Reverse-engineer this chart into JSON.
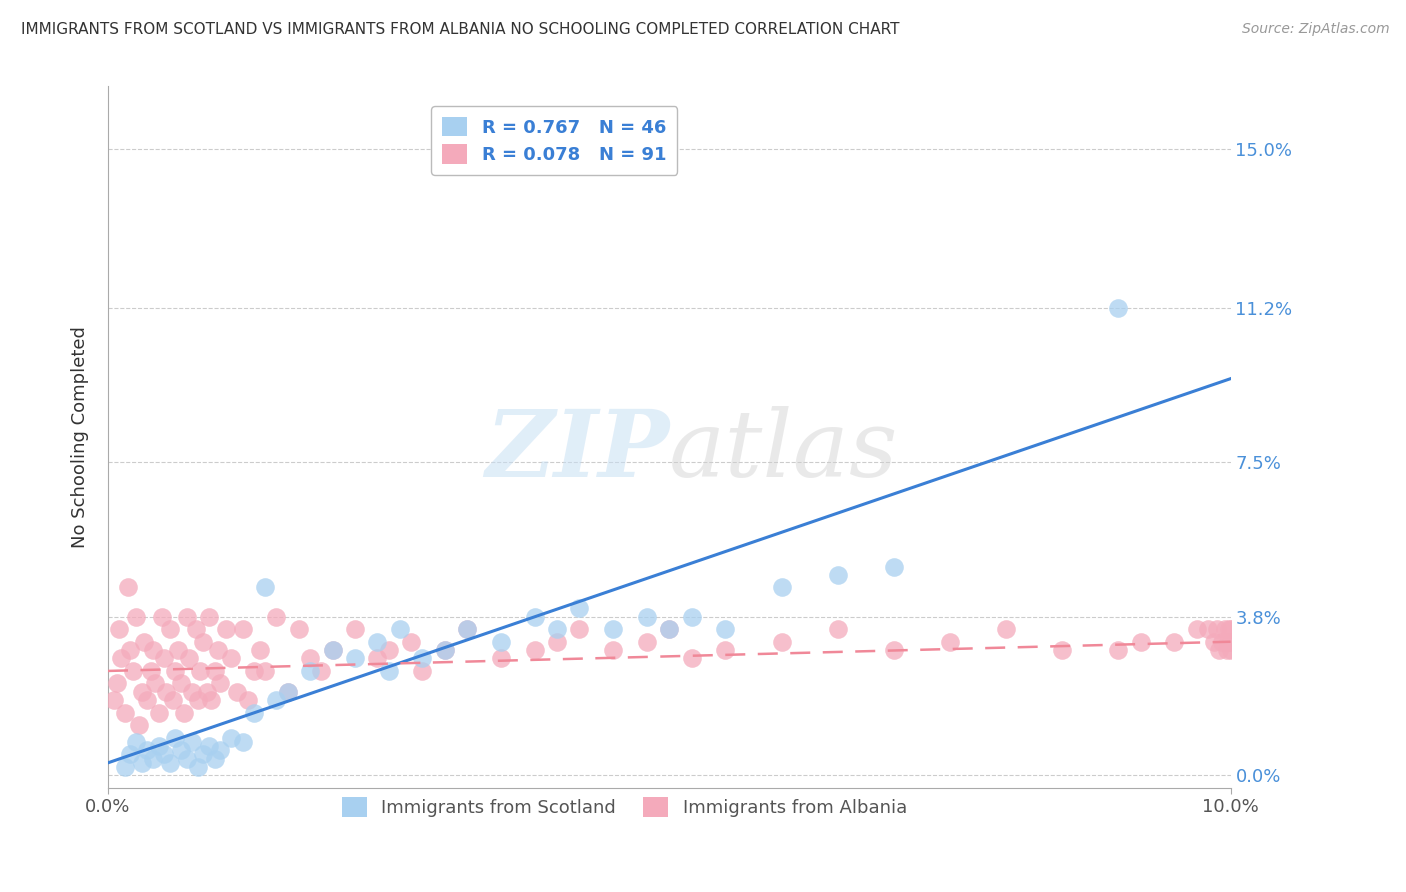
{
  "title": "IMMIGRANTS FROM SCOTLAND VS IMMIGRANTS FROM ALBANIA NO SCHOOLING COMPLETED CORRELATION CHART",
  "source": "Source: ZipAtlas.com",
  "ylabel": "No Schooling Completed",
  "ytick_labels": [
    "15.0%",
    "11.2%",
    "7.5%",
    "3.8%",
    "0.0%"
  ],
  "ytick_values": [
    15.0,
    11.2,
    7.5,
    3.8,
    0.0
  ],
  "xlim": [
    0.0,
    10.0
  ],
  "ylim": [
    -0.3,
    16.5
  ],
  "scotland_color": "#A8D0F0",
  "albania_color": "#F4AABB",
  "scotland_line_color": "#3A7FD5",
  "albania_line_color": "#F08898",
  "legend_scotland_label": "R = 0.767   N = 46",
  "legend_albania_label": "R = 0.078   N = 91",
  "bottom_legend_scotland": "Immigrants from Scotland",
  "bottom_legend_albania": "Immigrants from Albania",
  "watermark_zip": "ZIP",
  "watermark_atlas": "atlas",
  "background_color": "#FFFFFF",
  "grid_color": "#CCCCCC",
  "scotland_line_x": [
    0.0,
    10.0
  ],
  "scotland_line_y": [
    0.3,
    9.5
  ],
  "albania_line_x": [
    0.0,
    10.0
  ],
  "albania_line_y": [
    2.5,
    3.2
  ],
  "scotland_points_x": [
    0.15,
    0.2,
    0.25,
    0.3,
    0.35,
    0.4,
    0.45,
    0.5,
    0.55,
    0.6,
    0.65,
    0.7,
    0.75,
    0.8,
    0.85,
    0.9,
    0.95,
    1.0,
    1.1,
    1.2,
    1.3,
    1.4,
    1.5,
    1.6,
    1.8,
    2.0,
    2.2,
    2.4,
    2.5,
    2.6,
    2.8,
    3.0,
    3.2,
    3.5,
    3.8,
    4.0,
    4.2,
    4.5,
    4.8,
    5.0,
    5.2,
    5.5,
    6.0,
    6.5,
    7.0,
    9.0
  ],
  "scotland_points_y": [
    0.2,
    0.5,
    0.8,
    0.3,
    0.6,
    0.4,
    0.7,
    0.5,
    0.3,
    0.9,
    0.6,
    0.4,
    0.8,
    0.2,
    0.5,
    0.7,
    0.4,
    0.6,
    0.9,
    0.8,
    1.5,
    4.5,
    1.8,
    2.0,
    2.5,
    3.0,
    2.8,
    3.2,
    2.5,
    3.5,
    2.8,
    3.0,
    3.5,
    3.2,
    3.8,
    3.5,
    4.0,
    3.5,
    3.8,
    3.5,
    3.8,
    3.5,
    4.5,
    4.8,
    5.0,
    11.2
  ],
  "albania_points_x": [
    0.05,
    0.08,
    0.1,
    0.12,
    0.15,
    0.18,
    0.2,
    0.22,
    0.25,
    0.28,
    0.3,
    0.32,
    0.35,
    0.38,
    0.4,
    0.42,
    0.45,
    0.48,
    0.5,
    0.52,
    0.55,
    0.58,
    0.6,
    0.62,
    0.65,
    0.68,
    0.7,
    0.72,
    0.75,
    0.78,
    0.8,
    0.82,
    0.85,
    0.88,
    0.9,
    0.92,
    0.95,
    0.98,
    1.0,
    1.05,
    1.1,
    1.15,
    1.2,
    1.25,
    1.3,
    1.35,
    1.4,
    1.5,
    1.6,
    1.7,
    1.8,
    1.9,
    2.0,
    2.2,
    2.4,
    2.5,
    2.7,
    2.8,
    3.0,
    3.2,
    3.5,
    3.8,
    4.0,
    4.2,
    4.5,
    4.8,
    5.0,
    5.2,
    5.5,
    6.0,
    6.5,
    7.0,
    7.5,
    8.0,
    8.5,
    9.0,
    9.2,
    9.5,
    9.7,
    9.8,
    9.85,
    9.88,
    9.9,
    9.92,
    9.95,
    9.97,
    9.98,
    9.99,
    10.0,
    10.0,
    10.0
  ],
  "albania_points_y": [
    1.8,
    2.2,
    3.5,
    2.8,
    1.5,
    4.5,
    3.0,
    2.5,
    3.8,
    1.2,
    2.0,
    3.2,
    1.8,
    2.5,
    3.0,
    2.2,
    1.5,
    3.8,
    2.8,
    2.0,
    3.5,
    1.8,
    2.5,
    3.0,
    2.2,
    1.5,
    3.8,
    2.8,
    2.0,
    3.5,
    1.8,
    2.5,
    3.2,
    2.0,
    3.8,
    1.8,
    2.5,
    3.0,
    2.2,
    3.5,
    2.8,
    2.0,
    3.5,
    1.8,
    2.5,
    3.0,
    2.5,
    3.8,
    2.0,
    3.5,
    2.8,
    2.5,
    3.0,
    3.5,
    2.8,
    3.0,
    3.2,
    2.5,
    3.0,
    3.5,
    2.8,
    3.0,
    3.2,
    3.5,
    3.0,
    3.2,
    3.5,
    2.8,
    3.0,
    3.2,
    3.5,
    3.0,
    3.2,
    3.5,
    3.0,
    3.0,
    3.2,
    3.2,
    3.5,
    3.5,
    3.2,
    3.5,
    3.0,
    3.2,
    3.5,
    3.0,
    3.2,
    3.5,
    3.0,
    3.2,
    3.5
  ]
}
